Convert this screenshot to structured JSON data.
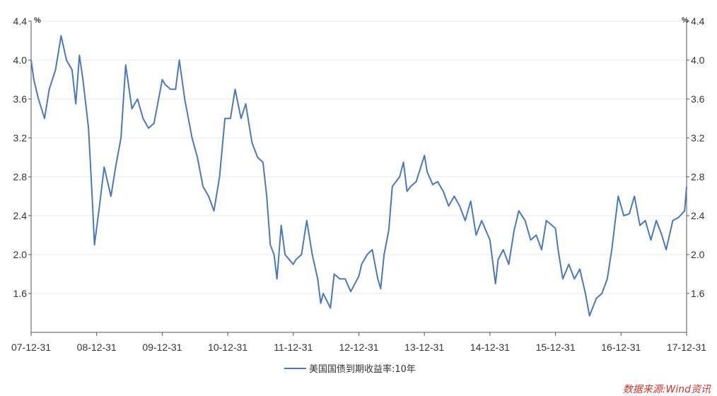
{
  "chart_data": {
    "type": "line",
    "unit_left": "%",
    "unit_right": "%",
    "yticks": [
      1.6,
      2.0,
      2.4,
      2.8,
      3.2,
      3.6,
      4.0,
      4.4
    ],
    "ylim": [
      1.2,
      4.4
    ],
    "x_tick_labels": [
      "07-12-31",
      "08-12-31",
      "09-12-31",
      "10-12-31",
      "11-12-31",
      "12-12-31",
      "13-12-31",
      "14-12-31",
      "15-12-31",
      "16-12-31",
      "17-12-31"
    ],
    "xlim": [
      "2007-12-31",
      "2017-12-31"
    ],
    "series": [
      {
        "name": "美国国债到期收益率:10年",
        "color": "#4a78c0",
        "points": [
          [
            "2007-12-31",
            4.0
          ],
          [
            "2008-01-15",
            3.8
          ],
          [
            "2008-02-10",
            3.6
          ],
          [
            "2008-03-15",
            3.4
          ],
          [
            "2008-04-10",
            3.7
          ],
          [
            "2008-05-15",
            3.9
          ],
          [
            "2008-06-15",
            4.25
          ],
          [
            "2008-07-15",
            4.0
          ],
          [
            "2008-08-15",
            3.9
          ],
          [
            "2008-09-05",
            3.55
          ],
          [
            "2008-09-25",
            4.05
          ],
          [
            "2008-10-15",
            3.8
          ],
          [
            "2008-11-15",
            3.3
          ],
          [
            "2008-12-05",
            2.6
          ],
          [
            "2008-12-18",
            2.1
          ],
          [
            "2009-01-15",
            2.5
          ],
          [
            "2009-02-10",
            2.9
          ],
          [
            "2009-03-20",
            2.6
          ],
          [
            "2009-04-15",
            2.9
          ],
          [
            "2009-05-15",
            3.2
          ],
          [
            "2009-06-10",
            3.95
          ],
          [
            "2009-07-15",
            3.5
          ],
          [
            "2009-08-15",
            3.6
          ],
          [
            "2009-09-15",
            3.4
          ],
          [
            "2009-10-15",
            3.3
          ],
          [
            "2009-11-15",
            3.35
          ],
          [
            "2009-12-31",
            3.8
          ],
          [
            "2010-01-15",
            3.75
          ],
          [
            "2010-02-15",
            3.7
          ],
          [
            "2010-03-15",
            3.7
          ],
          [
            "2010-04-05",
            4.0
          ],
          [
            "2010-05-05",
            3.6
          ],
          [
            "2010-06-15",
            3.2
          ],
          [
            "2010-07-15",
            3.0
          ],
          [
            "2010-08-15",
            2.7
          ],
          [
            "2010-09-15",
            2.6
          ],
          [
            "2010-10-15",
            2.45
          ],
          [
            "2010-11-15",
            2.8
          ],
          [
            "2010-12-15",
            3.4
          ],
          [
            "2011-01-15",
            3.4
          ],
          [
            "2011-02-10",
            3.7
          ],
          [
            "2011-03-15",
            3.4
          ],
          [
            "2011-04-10",
            3.55
          ],
          [
            "2011-05-15",
            3.15
          ],
          [
            "2011-06-15",
            3.0
          ],
          [
            "2011-07-15",
            2.95
          ],
          [
            "2011-08-05",
            2.6
          ],
          [
            "2011-08-25",
            2.1
          ],
          [
            "2011-09-15",
            2.0
          ],
          [
            "2011-10-01",
            1.75
          ],
          [
            "2011-10-25",
            2.3
          ],
          [
            "2011-11-15",
            2.0
          ],
          [
            "2011-12-31",
            1.9
          ],
          [
            "2012-01-15",
            1.95
          ],
          [
            "2012-02-15",
            2.0
          ],
          [
            "2012-03-15",
            2.35
          ],
          [
            "2012-04-15",
            2.0
          ],
          [
            "2012-05-15",
            1.75
          ],
          [
            "2012-06-01",
            1.5
          ],
          [
            "2012-06-15",
            1.6
          ],
          [
            "2012-07-25",
            1.45
          ],
          [
            "2012-08-15",
            1.8
          ],
          [
            "2012-09-15",
            1.75
          ],
          [
            "2012-10-15",
            1.75
          ],
          [
            "2012-11-15",
            1.62
          ],
          [
            "2012-12-31",
            1.78
          ],
          [
            "2013-01-15",
            1.9
          ],
          [
            "2013-02-15",
            2.0
          ],
          [
            "2013-03-15",
            2.05
          ],
          [
            "2013-04-15",
            1.75
          ],
          [
            "2013-05-01",
            1.65
          ],
          [
            "2013-05-20",
            2.0
          ],
          [
            "2013-06-15",
            2.25
          ],
          [
            "2013-07-05",
            2.7
          ],
          [
            "2013-08-15",
            2.8
          ],
          [
            "2013-09-05",
            2.95
          ],
          [
            "2013-09-25",
            2.65
          ],
          [
            "2013-10-15",
            2.7
          ],
          [
            "2013-11-15",
            2.75
          ],
          [
            "2013-12-31",
            3.02
          ],
          [
            "2014-01-15",
            2.85
          ],
          [
            "2014-02-15",
            2.72
          ],
          [
            "2014-03-15",
            2.75
          ],
          [
            "2014-04-15",
            2.65
          ],
          [
            "2014-05-15",
            2.5
          ],
          [
            "2014-06-15",
            2.6
          ],
          [
            "2014-07-15",
            2.5
          ],
          [
            "2014-08-15",
            2.35
          ],
          [
            "2014-09-15",
            2.55
          ],
          [
            "2014-10-15",
            2.2
          ],
          [
            "2014-11-15",
            2.35
          ],
          [
            "2014-12-31",
            2.15
          ],
          [
            "2015-01-31",
            1.7
          ],
          [
            "2015-02-15",
            1.95
          ],
          [
            "2015-03-15",
            2.05
          ],
          [
            "2015-04-15",
            1.9
          ],
          [
            "2015-05-15",
            2.25
          ],
          [
            "2015-06-10",
            2.45
          ],
          [
            "2015-07-15",
            2.35
          ],
          [
            "2015-08-15",
            2.15
          ],
          [
            "2015-09-15",
            2.2
          ],
          [
            "2015-10-15",
            2.05
          ],
          [
            "2015-11-10",
            2.35
          ],
          [
            "2015-12-31",
            2.27
          ],
          [
            "2016-01-15",
            2.05
          ],
          [
            "2016-02-10",
            1.75
          ],
          [
            "2016-03-15",
            1.9
          ],
          [
            "2016-04-15",
            1.75
          ],
          [
            "2016-05-15",
            1.85
          ],
          [
            "2016-06-15",
            1.6
          ],
          [
            "2016-07-08",
            1.37
          ],
          [
            "2016-08-15",
            1.55
          ],
          [
            "2016-09-15",
            1.6
          ],
          [
            "2016-10-15",
            1.75
          ],
          [
            "2016-11-09",
            2.05
          ],
          [
            "2016-12-15",
            2.6
          ],
          [
            "2017-01-15",
            2.4
          ],
          [
            "2017-02-15",
            2.42
          ],
          [
            "2017-03-15",
            2.6
          ],
          [
            "2017-04-15",
            2.3
          ],
          [
            "2017-05-15",
            2.35
          ],
          [
            "2017-06-15",
            2.15
          ],
          [
            "2017-07-15",
            2.35
          ],
          [
            "2017-08-15",
            2.2
          ],
          [
            "2017-09-08",
            2.05
          ],
          [
            "2017-10-15",
            2.35
          ],
          [
            "2017-11-15",
            2.38
          ],
          [
            "2017-12-20",
            2.45
          ],
          [
            "2017-12-31",
            2.7
          ]
        ]
      }
    ]
  },
  "source": "数据来源:Wind资讯"
}
